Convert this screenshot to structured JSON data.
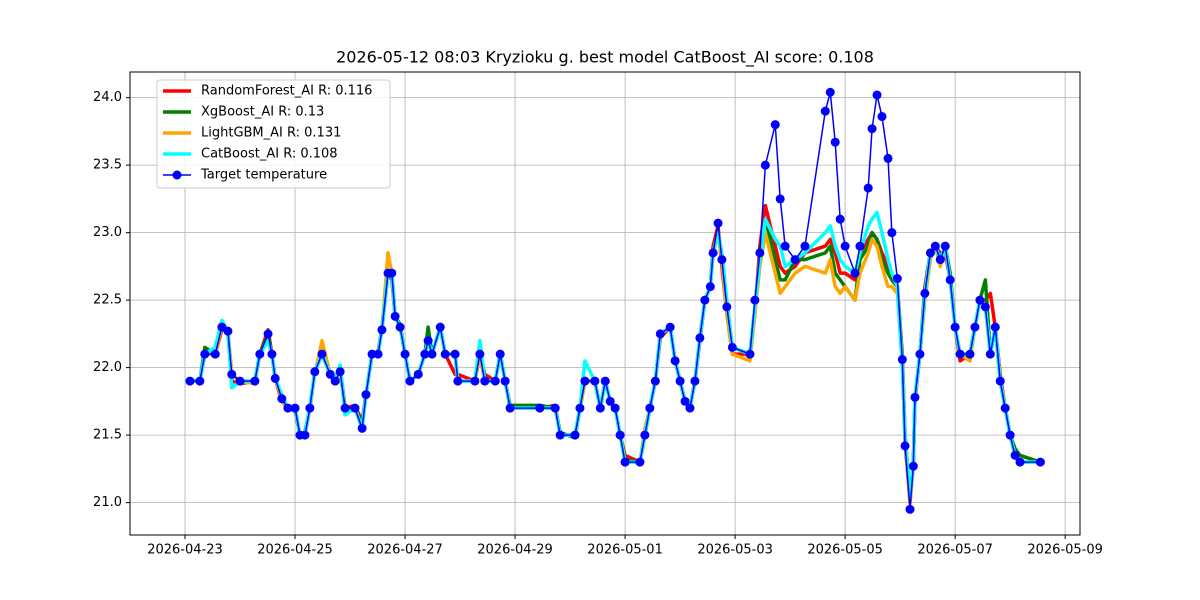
{
  "chart_data": {
    "type": "line",
    "title": "2026-05-12 08:03 Kryzioku g. best model CatBoost_AI score: 0.108",
    "x": [
      0.09,
      0.27,
      0.36,
      0.55,
      0.67,
      0.78,
      0.85,
      1.0,
      1.27,
      1.36,
      1.51,
      1.58,
      1.64,
      1.76,
      1.87,
      2.0,
      2.09,
      2.18,
      2.27,
      2.36,
      2.49,
      2.64,
      2.73,
      2.82,
      2.91,
      3.09,
      3.22,
      3.29,
      3.4,
      3.51,
      3.58,
      3.69,
      3.76,
      3.82,
      3.91,
      4.0,
      4.09,
      4.24,
      4.36,
      4.42,
      4.49,
      4.64,
      4.73,
      4.91,
      4.96,
      5.27,
      5.36,
      5.45,
      5.64,
      5.73,
      5.82,
      5.91,
      6.45,
      6.73,
      6.82,
      7.09,
      7.18,
      7.27,
      7.45,
      7.55,
      7.64,
      7.73,
      7.82,
      7.91,
      8.0,
      8.27,
      8.36,
      8.45,
      8.55,
      8.64,
      8.82,
      8.91,
      9.0,
      9.09,
      9.18,
      9.27,
      9.36,
      9.45,
      9.55,
      9.6,
      9.69,
      9.76,
      9.85,
      9.95,
      10.27,
      10.36,
      10.45,
      10.55,
      10.73,
      10.82,
      10.91,
      11.09,
      11.27,
      11.64,
      11.73,
      11.82,
      11.91,
      12.0,
      12.18,
      12.27,
      12.42,
      12.49,
      12.58,
      12.67,
      12.78,
      12.85,
      12.95,
      13.04,
      13.09,
      13.18,
      13.24,
      13.27,
      13.36,
      13.45,
      13.55,
      13.64,
      13.73,
      13.82,
      13.91,
      14.0,
      14.09,
      14.27,
      14.36,
      14.45,
      14.55,
      14.64,
      14.73,
      14.82,
      14.91,
      15.0,
      15.09,
      15.18,
      15.55
    ],
    "series": [
      {
        "name": "RandomForest_AI R: 0.116",
        "color": "#ff0000",
        "values": [
          21.9,
          21.9,
          22.1,
          22.1,
          22.28,
          22.28,
          21.9,
          21.88,
          21.9,
          22.1,
          22.28,
          22.1,
          21.92,
          21.75,
          21.7,
          21.68,
          21.5,
          21.5,
          21.7,
          21.97,
          22.1,
          21.95,
          21.9,
          21.97,
          21.7,
          21.72,
          21.6,
          21.8,
          22.1,
          22.12,
          22.28,
          22.7,
          22.65,
          22.38,
          22.3,
          22.1,
          21.9,
          21.95,
          22.1,
          22.25,
          22.1,
          22.3,
          22.1,
          21.95,
          21.95,
          21.9,
          22.1,
          21.95,
          21.9,
          22.1,
          21.9,
          21.7,
          21.7,
          21.72,
          21.5,
          21.5,
          21.7,
          21.9,
          21.9,
          21.7,
          21.9,
          21.75,
          21.7,
          21.5,
          21.35,
          21.3,
          21.5,
          21.7,
          21.9,
          22.22,
          22.3,
          22.05,
          21.9,
          21.75,
          21.7,
          21.9,
          22.2,
          22.5,
          22.6,
          22.9,
          23.05,
          22.75,
          22.4,
          22.1,
          22.1,
          22.4,
          22.9,
          23.2,
          22.9,
          22.75,
          22.7,
          22.75,
          22.85,
          22.9,
          22.95,
          22.85,
          22.7,
          22.7,
          22.65,
          22.85,
          22.95,
          23.0,
          22.95,
          22.85,
          22.75,
          22.65,
          22.6,
          22.05,
          21.45,
          21.0,
          21.3,
          21.75,
          22.1,
          22.6,
          22.85,
          22.9,
          22.85,
          22.85,
          22.65,
          22.3,
          22.05,
          22.1,
          22.3,
          22.5,
          22.5,
          22.55,
          22.3,
          21.95,
          21.7,
          21.5,
          21.35,
          21.35,
          21.3
        ]
      },
      {
        "name": "XgBoost_AI R: 0.13",
        "color": "#008000",
        "values": [
          21.9,
          21.9,
          22.15,
          22.1,
          22.3,
          22.25,
          21.95,
          21.9,
          21.9,
          22.1,
          22.25,
          22.1,
          21.92,
          21.77,
          21.7,
          21.7,
          21.5,
          21.52,
          21.7,
          21.97,
          22.1,
          21.95,
          21.9,
          22.0,
          21.7,
          21.7,
          21.58,
          21.8,
          22.1,
          22.1,
          22.3,
          22.7,
          22.7,
          22.38,
          22.32,
          22.1,
          21.9,
          21.95,
          22.1,
          22.3,
          22.1,
          22.3,
          22.1,
          22.1,
          21.9,
          21.9,
          22.1,
          21.9,
          21.9,
          22.1,
          21.9,
          21.72,
          21.72,
          21.7,
          21.52,
          21.48,
          21.7,
          21.9,
          21.9,
          21.7,
          21.9,
          21.75,
          21.7,
          21.5,
          21.32,
          21.3,
          21.5,
          21.7,
          21.9,
          22.25,
          22.3,
          22.05,
          21.9,
          21.75,
          21.7,
          21.9,
          22.22,
          22.5,
          22.6,
          22.85,
          23.0,
          22.8,
          22.45,
          22.15,
          22.1,
          22.45,
          22.8,
          23.1,
          22.8,
          22.65,
          22.65,
          22.8,
          22.8,
          22.85,
          22.9,
          22.7,
          22.65,
          22.6,
          22.5,
          22.8,
          22.9,
          23.0,
          22.95,
          22.8,
          22.7,
          22.65,
          22.6,
          22.1,
          21.5,
          21.05,
          21.27,
          21.78,
          22.1,
          22.55,
          22.85,
          22.9,
          22.8,
          22.9,
          22.7,
          22.3,
          22.1,
          22.1,
          22.3,
          22.5,
          22.65,
          22.1,
          22.3,
          21.9,
          21.7,
          21.5,
          21.4,
          21.35,
          21.3
        ]
      },
      {
        "name": "LightGBM_AI R: 0.131",
        "color": "#ffa500",
        "values": [
          21.9,
          21.9,
          22.1,
          22.1,
          22.3,
          22.27,
          21.95,
          21.9,
          21.88,
          22.1,
          22.2,
          22.1,
          21.92,
          21.77,
          21.68,
          21.7,
          21.5,
          21.5,
          21.7,
          21.95,
          22.2,
          21.95,
          21.9,
          21.97,
          21.68,
          21.7,
          21.55,
          21.8,
          22.1,
          22.1,
          22.28,
          22.85,
          22.7,
          22.38,
          22.3,
          22.1,
          21.9,
          21.95,
          22.1,
          22.2,
          22.1,
          22.3,
          22.1,
          22.1,
          21.9,
          21.9,
          22.1,
          21.9,
          21.9,
          22.1,
          21.9,
          21.7,
          21.7,
          21.7,
          21.5,
          21.5,
          21.7,
          21.9,
          21.9,
          21.7,
          21.9,
          21.75,
          21.7,
          21.5,
          21.3,
          21.3,
          21.55,
          21.7,
          21.9,
          22.25,
          22.3,
          22.05,
          21.9,
          21.75,
          21.7,
          21.9,
          22.22,
          22.5,
          22.6,
          22.85,
          23.0,
          22.8,
          22.4,
          22.1,
          22.05,
          22.4,
          22.75,
          23.0,
          22.7,
          22.55,
          22.6,
          22.7,
          22.75,
          22.7,
          22.8,
          22.6,
          22.55,
          22.6,
          22.5,
          22.7,
          22.85,
          22.95,
          22.9,
          22.75,
          22.6,
          22.6,
          22.55,
          22.05,
          21.5,
          21.0,
          21.27,
          21.78,
          22.1,
          22.5,
          22.8,
          22.9,
          22.75,
          22.9,
          22.65,
          22.3,
          22.1,
          22.05,
          22.3,
          22.5,
          22.45,
          22.1,
          22.3,
          21.9,
          21.7,
          21.5,
          21.35,
          21.3,
          21.3
        ]
      },
      {
        "name": "CatBoost_AI R: 0.108",
        "color": "#00ffff",
        "values": [
          21.9,
          21.9,
          22.1,
          22.15,
          22.35,
          22.27,
          21.85,
          21.9,
          21.9,
          22.1,
          22.2,
          22.1,
          21.92,
          21.8,
          21.7,
          21.7,
          21.5,
          21.5,
          21.72,
          21.97,
          22.1,
          21.95,
          21.92,
          22.02,
          21.65,
          21.7,
          21.55,
          21.8,
          22.1,
          22.1,
          22.28,
          22.7,
          22.7,
          22.38,
          22.3,
          22.1,
          21.9,
          21.95,
          22.1,
          22.2,
          22.1,
          22.3,
          22.1,
          22.1,
          21.9,
          21.9,
          22.2,
          21.9,
          21.9,
          22.1,
          21.9,
          21.7,
          21.7,
          21.7,
          21.5,
          21.5,
          21.7,
          22.05,
          21.9,
          21.7,
          21.9,
          21.75,
          21.7,
          21.5,
          21.3,
          21.3,
          21.5,
          21.7,
          21.9,
          22.25,
          22.3,
          22.05,
          21.9,
          21.75,
          21.7,
          21.9,
          22.22,
          22.5,
          22.6,
          22.85,
          23.0,
          22.85,
          22.5,
          22.15,
          22.1,
          22.45,
          22.8,
          23.1,
          22.95,
          22.9,
          22.75,
          22.8,
          22.85,
          23.0,
          23.05,
          22.9,
          22.8,
          22.75,
          22.7,
          22.85,
          23.05,
          23.1,
          23.15,
          23.0,
          22.8,
          22.7,
          22.6,
          22.0,
          21.5,
          21.05,
          21.27,
          21.78,
          22.1,
          22.55,
          22.85,
          22.9,
          22.8,
          22.9,
          22.65,
          22.3,
          22.1,
          22.1,
          22.3,
          22.5,
          22.45,
          22.1,
          22.3,
          21.9,
          21.7,
          21.5,
          21.35,
          21.3,
          21.3
        ]
      },
      {
        "name": "Target temperature",
        "color": "#0000ff",
        "marker": true,
        "values": [
          21.9,
          21.9,
          22.1,
          22.1,
          22.3,
          22.27,
          21.95,
          21.9,
          21.9,
          22.1,
          22.25,
          22.1,
          21.92,
          21.77,
          21.7,
          21.7,
          21.5,
          21.5,
          21.7,
          21.97,
          22.1,
          21.95,
          21.9,
          21.97,
          21.7,
          21.7,
          21.55,
          21.8,
          22.1,
          22.1,
          22.28,
          22.7,
          22.7,
          22.38,
          22.3,
          22.1,
          21.9,
          21.95,
          22.1,
          22.2,
          22.1,
          22.3,
          22.1,
          22.1,
          21.9,
          21.9,
          22.1,
          21.9,
          21.9,
          22.1,
          21.9,
          21.7,
          21.7,
          21.7,
          21.5,
          21.5,
          21.7,
          21.9,
          21.9,
          21.7,
          21.9,
          21.75,
          21.7,
          21.5,
          21.3,
          21.3,
          21.5,
          21.7,
          21.9,
          22.25,
          22.3,
          22.05,
          21.9,
          21.75,
          21.7,
          21.9,
          22.22,
          22.5,
          22.6,
          22.85,
          23.07,
          22.8,
          22.45,
          22.15,
          22.1,
          22.5,
          22.85,
          23.5,
          23.8,
          23.25,
          22.9,
          22.8,
          22.9,
          23.9,
          24.04,
          23.67,
          23.1,
          22.9,
          22.7,
          22.9,
          23.33,
          23.77,
          24.02,
          23.86,
          23.55,
          23.0,
          22.66,
          22.06,
          21.42,
          20.95,
          21.27,
          21.78,
          22.1,
          22.55,
          22.85,
          22.9,
          22.8,
          22.9,
          22.65,
          22.3,
          22.1,
          22.1,
          22.3,
          22.5,
          22.45,
          22.1,
          22.3,
          21.9,
          21.7,
          21.5,
          21.35,
          21.3,
          21.3
        ]
      }
    ],
    "xlim": [
      -1.0,
      16.27
    ],
    "xticks": [
      {
        "value": 0,
        "label": "2026-04-23"
      },
      {
        "value": 2,
        "label": "2026-04-25"
      },
      {
        "value": 4,
        "label": "2026-04-27"
      },
      {
        "value": 6,
        "label": "2026-04-29"
      },
      {
        "value": 8,
        "label": "2026-05-01"
      },
      {
        "value": 10,
        "label": "2026-05-03"
      },
      {
        "value": 12,
        "label": "2026-05-05"
      },
      {
        "value": 14,
        "label": "2026-05-07"
      },
      {
        "value": 16,
        "label": "2026-05-09"
      }
    ],
    "ylim": [
      20.76,
      24.19
    ],
    "yticks": [
      {
        "value": 21,
        "label": "21.0"
      },
      21.5,
      {
        "value": 22,
        "label": "22.0"
      },
      22.5,
      {
        "value": 23,
        "label": "23.0"
      },
      23.5,
      {
        "value": 24,
        "label": "24.0"
      }
    ],
    "grid": true,
    "legend": "upper left"
  }
}
